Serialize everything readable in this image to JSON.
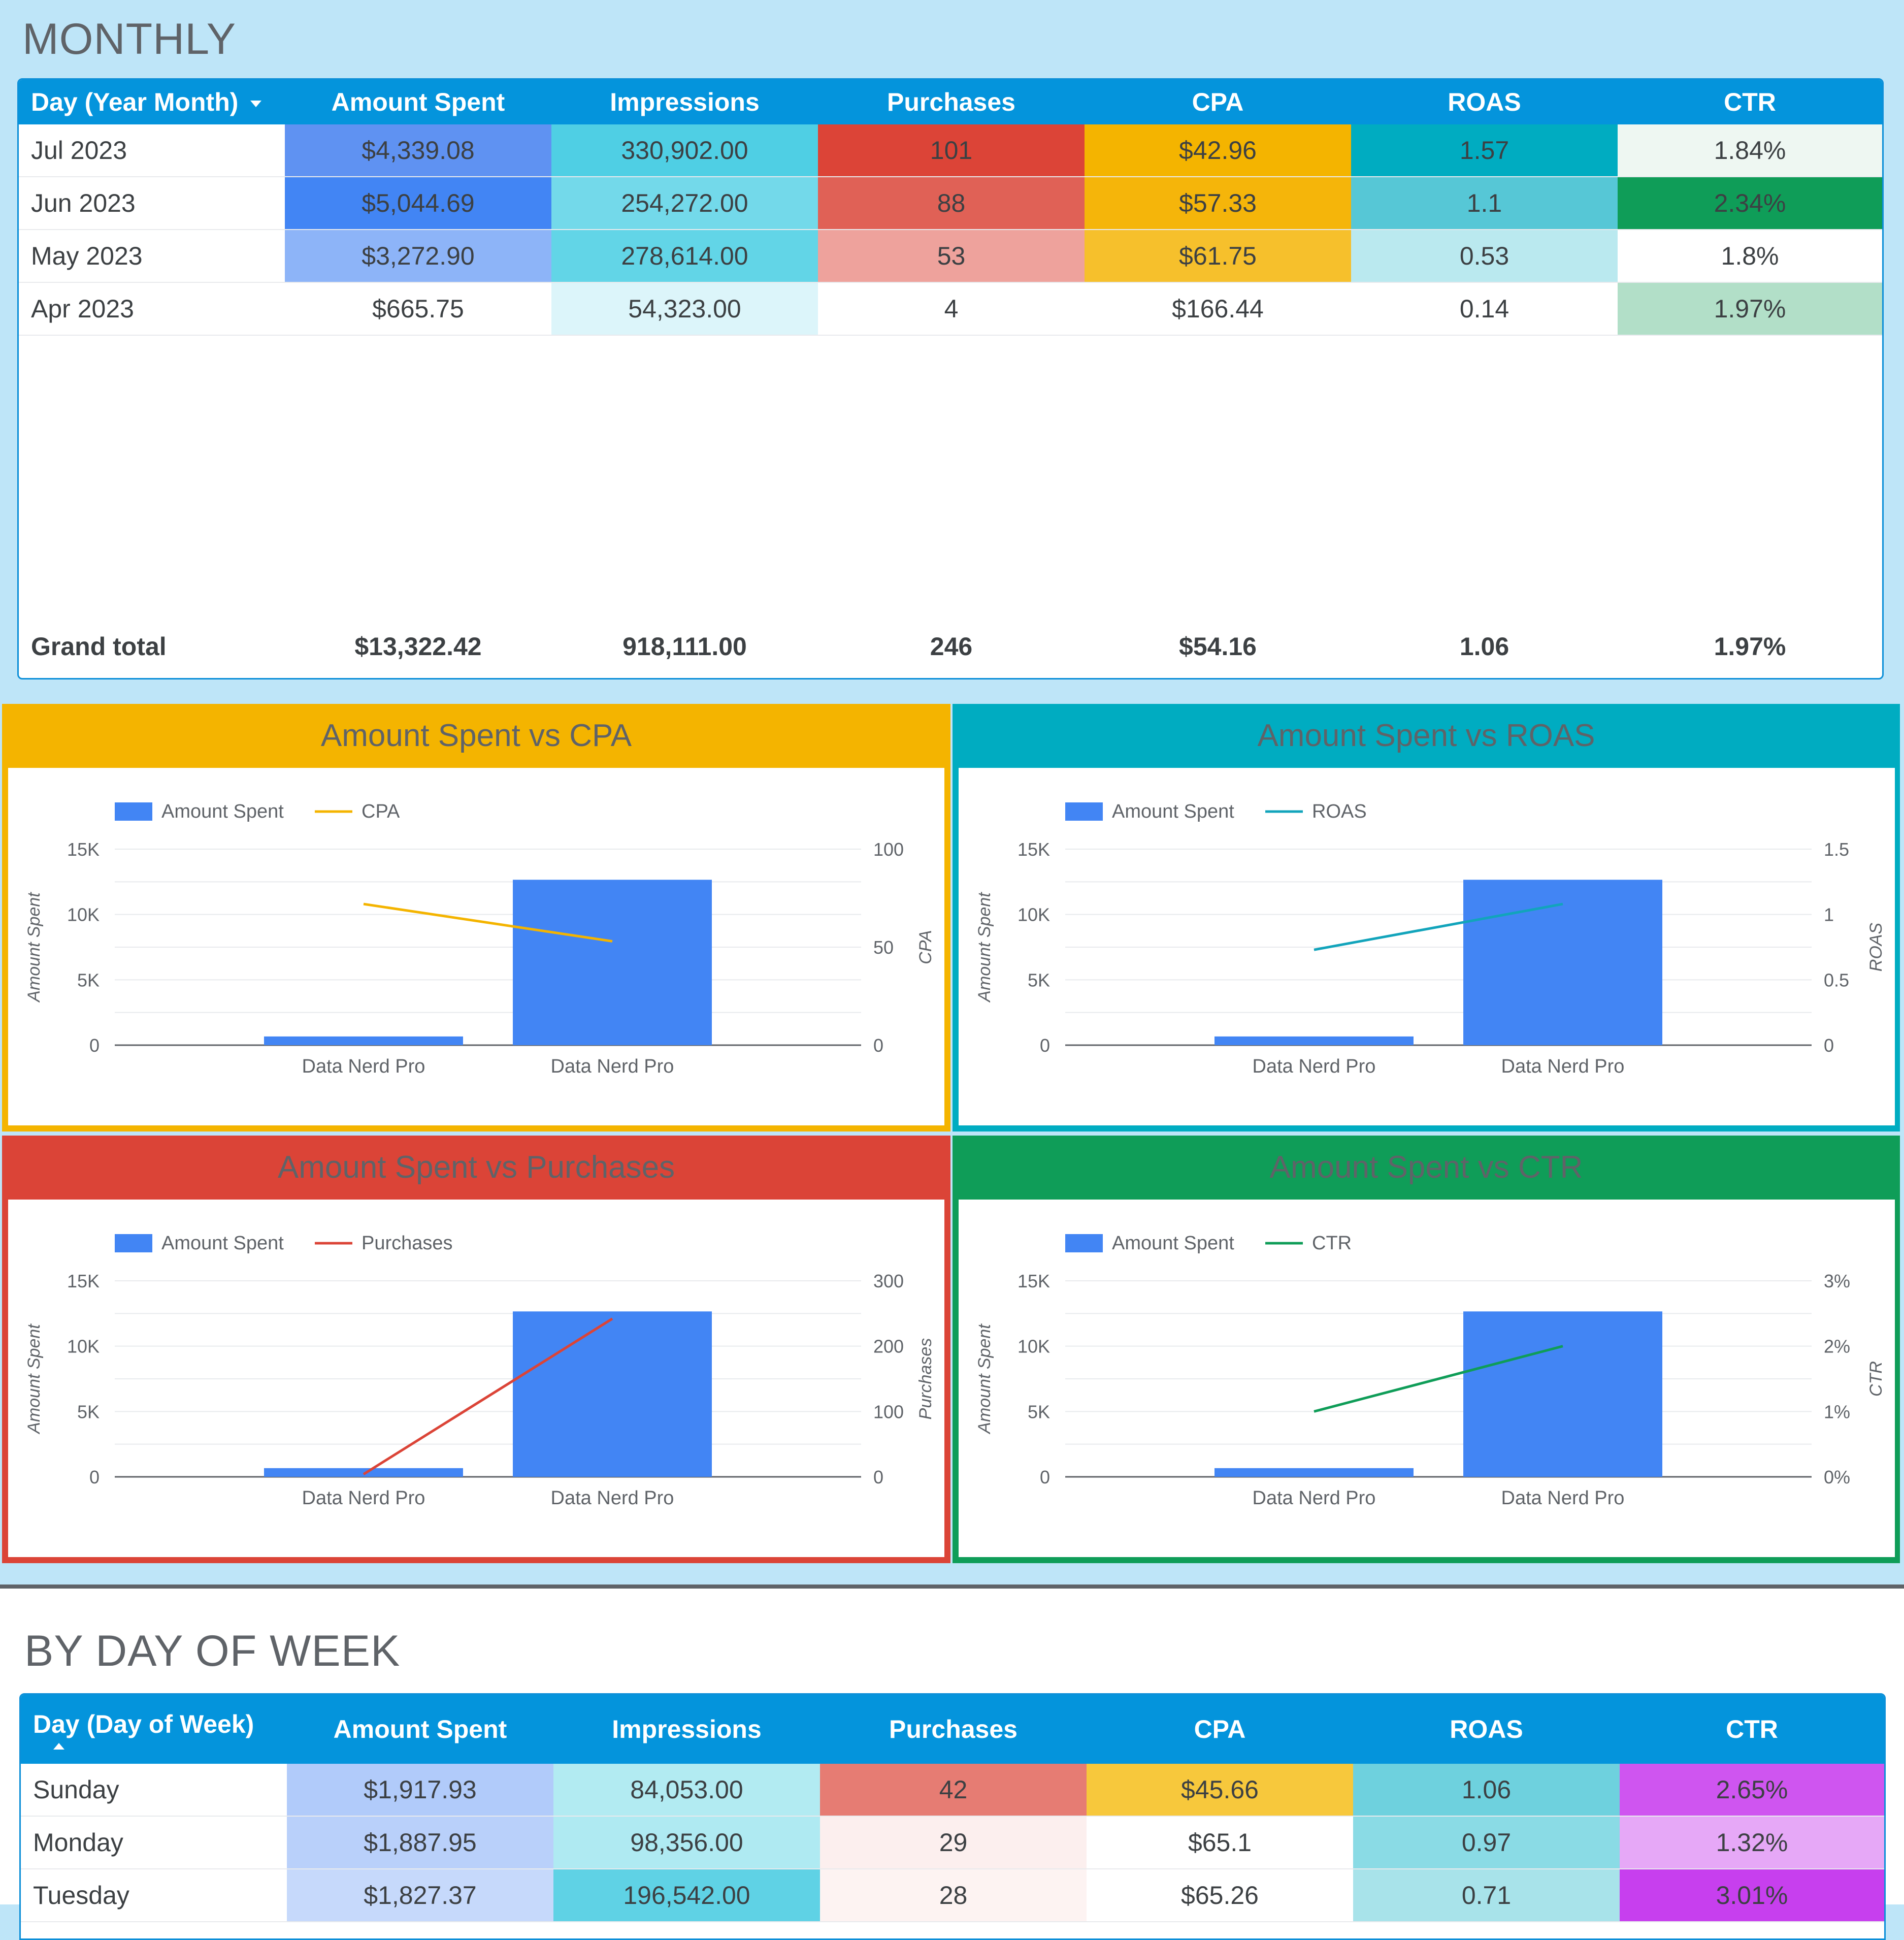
{
  "monthly": {
    "title": "MONTHLY",
    "headers": [
      "Day (Year Month)",
      "Amount Spent",
      "Impressions",
      "Purchases",
      "CPA",
      "ROAS",
      "CTR"
    ],
    "rows": [
      {
        "cells": [
          "Jul 2023",
          "$4,339.08",
          "330,902.00",
          "101",
          "$42.96",
          "1.57",
          "1.84%"
        ],
        "colors": [
          "#ffffff",
          "#5f92f2",
          "#4fcfe4",
          "#dc4437",
          "#f4b400",
          "#00acc1",
          "#eef7f2"
        ]
      },
      {
        "cells": [
          "Jun 2023",
          "$5,044.69",
          "254,272.00",
          "88",
          "$57.33",
          "1.1",
          "2.34%"
        ],
        "colors": [
          "#ffffff",
          "#4285f4",
          "#73d9ea",
          "#e06156",
          "#f5b50a",
          "#56c7d6",
          "#0f9d58"
        ]
      },
      {
        "cells": [
          "May 2023",
          "$3,272.90",
          "278,614.00",
          "53",
          "$61.75",
          "0.53",
          "1.8%"
        ],
        "colors": [
          "#ffffff",
          "#8db4f8",
          "#62d5e7",
          "#eea29c",
          "#f6c02c",
          "#bae9ef",
          "#ffffff"
        ]
      },
      {
        "cells": [
          "Apr 2023",
          "$665.75",
          "54,323.00",
          "4",
          "$166.44",
          "0.14",
          "1.97%"
        ],
        "colors": [
          "#ffffff",
          "#ffffff",
          "#dcf5fa",
          "#ffffff",
          "#ffffff",
          "#ffffff",
          "#b2dfc8"
        ]
      }
    ],
    "total": [
      "Grand total",
      "$13,322.42",
      "918,111.00",
      "246",
      "$54.16",
      "1.06",
      "1.97%"
    ]
  },
  "charts": [
    {
      "title": "Amount Spent vs CPA",
      "panel_color": "#f4b400",
      "line_color": "#f4b400",
      "legend": [
        "Amount Spent",
        "CPA"
      ],
      "left_axis_label": "Amount Spent",
      "right_axis_label": "CPA",
      "left_ticks": [
        "15K",
        "10K",
        "5K",
        "0"
      ],
      "right_ticks": [
        "100",
        "50",
        "0"
      ],
      "chart_data": {
        "type": "bar",
        "categories": [
          "Data Nerd Pro",
          "Data Nerd Pro"
        ],
        "series": [
          {
            "name": "Amount Spent",
            "values": [
              665.75,
              12656.67
            ],
            "axis": "left"
          },
          {
            "name": "CPA",
            "values": [
              72,
              53
            ],
            "axis": "right"
          }
        ],
        "ylim_left": [
          0,
          15000
        ],
        "ylim_right": [
          0,
          100
        ],
        "grid": true,
        "legend": "top-left"
      }
    },
    {
      "title": "Amount Spent vs ROAS",
      "panel_color": "#00acc1",
      "line_color": "#12a4bb",
      "legend": [
        "Amount Spent",
        "ROAS"
      ],
      "left_axis_label": "Amount Spent",
      "right_axis_label": "ROAS",
      "left_ticks": [
        "15K",
        "10K",
        "5K",
        "0"
      ],
      "right_ticks": [
        "1.5",
        "1",
        "0.5",
        "0"
      ],
      "chart_data": {
        "type": "bar",
        "categories": [
          "Data Nerd Pro",
          "Data Nerd Pro"
        ],
        "series": [
          {
            "name": "Amount Spent",
            "values": [
              665.75,
              12656.67
            ],
            "axis": "left"
          },
          {
            "name": "ROAS",
            "values": [
              0.73,
              1.08
            ],
            "axis": "right"
          }
        ],
        "ylim_left": [
          0,
          15000
        ],
        "ylim_right": [
          0,
          1.5
        ],
        "grid": true,
        "legend": "top-left"
      }
    },
    {
      "title": "Amount Spent vs Purchases",
      "panel_color": "#db4437",
      "line_color": "#db4437",
      "legend": [
        "Amount Spent",
        "Purchases"
      ],
      "left_axis_label": "Amount Spent",
      "right_axis_label": "Purchases",
      "left_ticks": [
        "15K",
        "10K",
        "5K",
        "0"
      ],
      "right_ticks": [
        "300",
        "200",
        "100",
        "0"
      ],
      "chart_data": {
        "type": "bar",
        "categories": [
          "Data Nerd Pro",
          "Data Nerd Pro"
        ],
        "series": [
          {
            "name": "Amount Spent",
            "values": [
              665.75,
              12656.67
            ],
            "axis": "left"
          },
          {
            "name": "Purchases",
            "values": [
              4,
              242
            ],
            "axis": "right"
          }
        ],
        "ylim_left": [
          0,
          15000
        ],
        "ylim_right": [
          0,
          300
        ],
        "grid": true,
        "legend": "top-left"
      }
    },
    {
      "title": "Amount Spent vs CTR",
      "panel_color": "#0f9d58",
      "line_color": "#0f9d58",
      "legend": [
        "Amount Spent",
        "CTR"
      ],
      "left_axis_label": "Amount Spent",
      "right_axis_label": "CTR",
      "left_ticks": [
        "15K",
        "10K",
        "5K",
        "0"
      ],
      "right_ticks": [
        "3%",
        "2%",
        "1%",
        "0%"
      ],
      "chart_data": {
        "type": "bar",
        "categories": [
          "Data Nerd Pro",
          "Data Nerd Pro"
        ],
        "series": [
          {
            "name": "Amount Spent",
            "values": [
              665.75,
              12656.67
            ],
            "axis": "left"
          },
          {
            "name": "CTR",
            "values": [
              1.0,
              2.0
            ],
            "axis": "right"
          }
        ],
        "ylim_left": [
          0,
          15000
        ],
        "ylim_right": [
          0,
          3
        ],
        "grid": true,
        "legend": "top-left"
      }
    }
  ],
  "weekly": {
    "title": "BY DAY OF WEEK",
    "headers": [
      "Day (Day of Week)",
      "Amount Spent",
      "Impressions",
      "Purchases",
      "CPA",
      "ROAS",
      "CTR"
    ],
    "rows": [
      {
        "cells": [
          "Sunday",
          "$1,917.93",
          "84,053.00",
          "42",
          "$45.66",
          "1.06",
          "2.65%"
        ],
        "colors": [
          "#ffffff",
          "#b1cbfa",
          "#b2ebf2",
          "#e67c73",
          "#f7c83c",
          "#6ed1de",
          "#cf55f0"
        ]
      },
      {
        "cells": [
          "Monday",
          "$1,887.95",
          "98,356.00",
          "29",
          "$65.1",
          "0.97",
          "1.32%"
        ],
        "colors": [
          "#ffffff",
          "#b9d0fa",
          "#afeaf2",
          "#fcefee",
          "#ffffff",
          "#8adbe5",
          "#e6a8f7"
        ]
      },
      {
        "cells": [
          "Tuesday",
          "$1,827.37",
          "196,542.00",
          "28",
          "$65.26",
          "0.71",
          "3.01%"
        ],
        "colors": [
          "#ffffff",
          "#c6d9fb",
          "#5fd2e5",
          "#fdf3f2",
          "#ffffff",
          "#a8e3ea",
          "#c73fee"
        ]
      }
    ]
  }
}
